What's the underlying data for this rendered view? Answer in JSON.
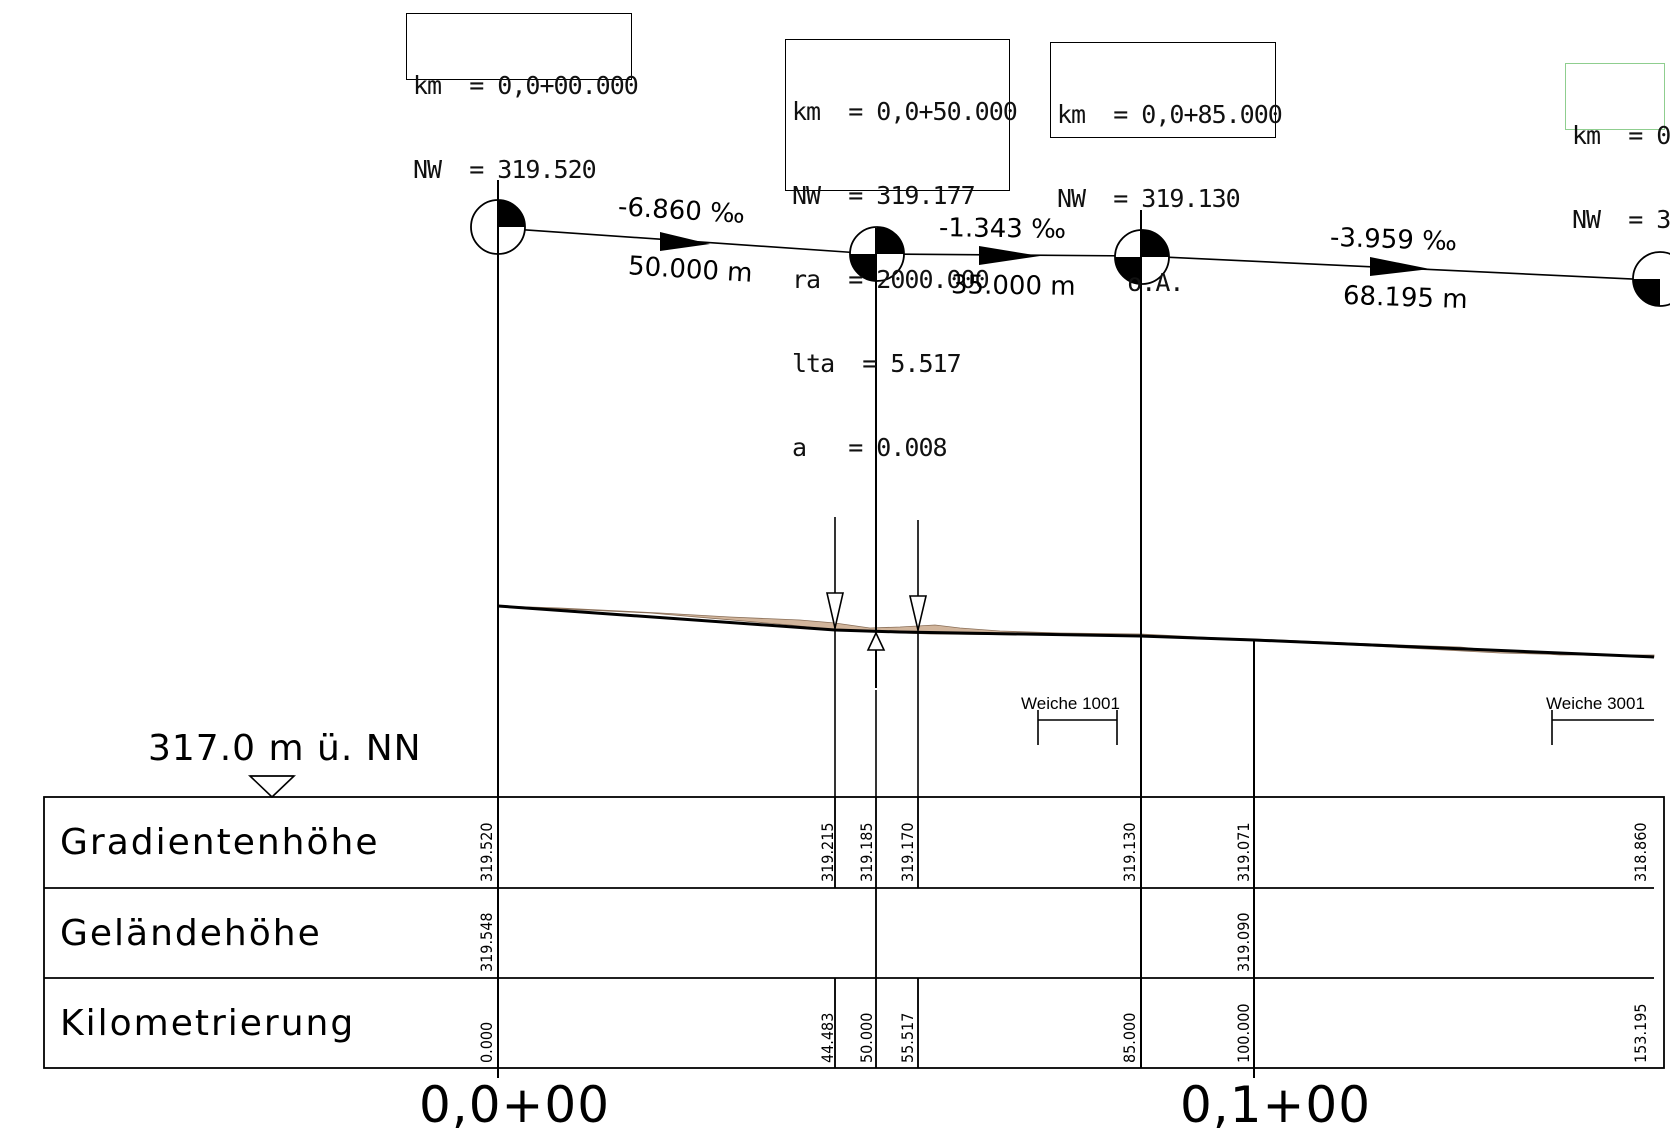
{
  "info_boxes": [
    {
      "id": "box1",
      "lines": [
        "km  = 0,0+00.000",
        "NW  = 319.520"
      ]
    },
    {
      "id": "box2",
      "lines": [
        "km  = 0,0+50.000",
        "NW  = 319.177",
        "ra  = 2000.000",
        "lta  = 5.517",
        "a   = 0.008"
      ]
    },
    {
      "id": "box3",
      "lines": [
        "km  = 0,0+85.000",
        "NW  = 319.130",
        "     o.A."
      ]
    },
    {
      "id": "box4",
      "lines": [
        "km  = 0",
        "NW  = 3"
      ],
      "border_color": "#8fce8f"
    }
  ],
  "gradients": [
    {
      "slope": "-6.860 ‰",
      "length": "50.000 m"
    },
    {
      "slope": "-1.343 ‰",
      "length": "35.000 m"
    },
    {
      "slope": "-3.959 ‰",
      "length": "68.195 m"
    }
  ],
  "datum_label": "317.0 m ü. NN",
  "switches": [
    "Weiche 1001",
    "Weiche 3001"
  ],
  "table": {
    "row_labels": [
      "Gradientenhöhe",
      "Geländehöhe",
      "Kilometrierung"
    ],
    "gradientenhoehe": [
      "319.520",
      "319.215",
      "319.185",
      "319.170",
      "319.130",
      "319.071",
      "318.860"
    ],
    "gelaendehoehe": [
      "319.548",
      "319.090"
    ],
    "kilometrierung": [
      "0.000",
      "44.483",
      "50.000",
      "55.517",
      "85.000",
      "100.000",
      "153.195"
    ]
  },
  "station_labels": [
    "0,0+00",
    "0,1+00"
  ],
  "colors": {
    "line": "#000000",
    "terrain_fill": "#c9a88b",
    "green_box": "#8fce8f"
  },
  "icons": [
    "vertex-marker-icon",
    "arrow-icon",
    "datum-triangle-icon"
  ]
}
